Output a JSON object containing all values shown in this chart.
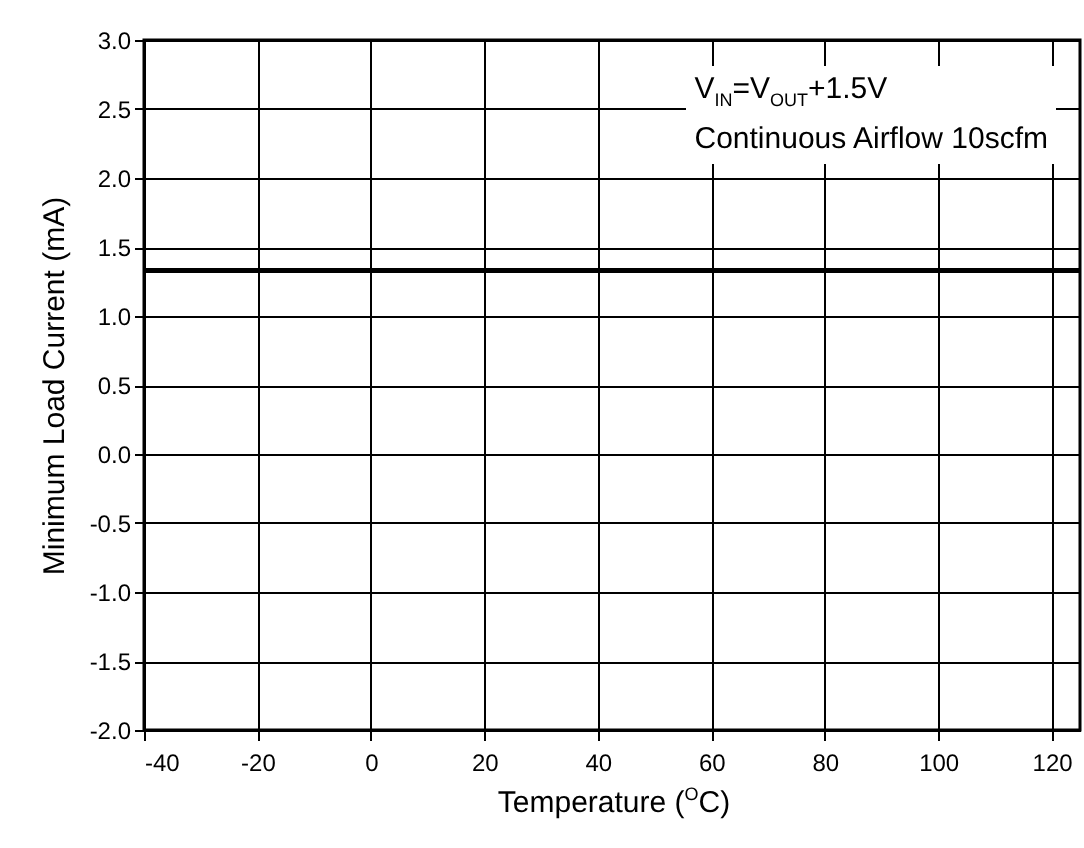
{
  "chart_data": {
    "type": "line",
    "xlabel": "Temperature ($^{O}$C)",
    "ylabel": "Minimum Load Current (mA)",
    "annotations": [
      "V$_{IN}$=V$_{OUT}$+1.5V",
      "Continuous Airflow 10scfm"
    ],
    "x": [
      -40,
      125
    ],
    "series": [
      {
        "color": "#000000",
        "values": [
          1.33,
          1.33
        ]
      }
    ],
    "xlim": [
      -40,
      125
    ],
    "xticks": [
      -40,
      -20,
      0,
      20,
      40,
      60,
      80,
      100,
      120
    ],
    "ylim": [
      -2,
      3
    ],
    "yticks": [
      {
        "value": -2,
        "label": "-2.0"
      },
      {
        "value": -1.5,
        "label": "-1.5"
      },
      {
        "value": -1,
        "label": "-1.0"
      },
      {
        "value": -0.5,
        "label": "-0.5"
      },
      {
        "value": 0,
        "label": "0.0"
      },
      {
        "value": 0.5,
        "label": "0.5"
      },
      {
        "value": 1,
        "label": "1.0"
      },
      {
        "value": 1.5,
        "label": "1.5"
      },
      {
        "value": 2,
        "label": "2.0"
      },
      {
        "value": 2.5,
        "label": "2.5"
      },
      {
        "value": 3,
        "label": "3.0"
      }
    ],
    "grid": true
  }
}
